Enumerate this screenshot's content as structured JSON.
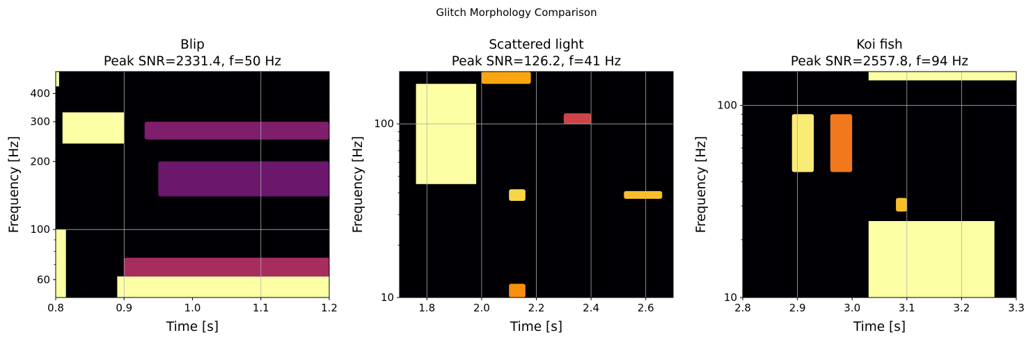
{
  "figure": {
    "suptitle": "Glitch Morphology Comparison"
  },
  "colormap": {
    "name": "inferno",
    "stops": [
      "#000004",
      "#1b0c41",
      "#4a0c6b",
      "#781c6d",
      "#a52c60",
      "#cf4446",
      "#ed6925",
      "#fb9b06",
      "#f7d13d",
      "#fcffa4"
    ]
  },
  "chart_data": [
    {
      "type": "heatmap",
      "title": "Blip\nPeak SNR=2331.4, f=50 Hz",
      "title_lines": [
        "Blip",
        "Peak SNR=2331.4, f=50 Hz"
      ],
      "xlabel": "Time [s]",
      "ylabel": "Frequency [Hz]",
      "xlim": [
        0.8,
        1.2
      ],
      "ylim": [
        50,
        500
      ],
      "yscale": "log",
      "xticks": [
        0.8,
        0.9,
        1.0,
        1.1,
        1.2
      ],
      "xtick_labels": [
        "0.8",
        "0.9",
        "1.0",
        "1.1",
        "1.2"
      ],
      "yticks": [
        60,
        100,
        200,
        300,
        400
      ],
      "ytick_labels": [
        "60",
        "100",
        "200",
        "300",
        "400"
      ],
      "grid_x": [
        0.9,
        1.1
      ],
      "grid_y": [
        100
      ],
      "grid": true,
      "peak": {
        "snr": 2331.4,
        "frequency_hz": 50
      },
      "features": [
        {
          "t0": 0.81,
          "t1": 0.9,
          "f0": 240,
          "f1": 330,
          "level": 1.0
        },
        {
          "t0": 0.89,
          "t1": 1.2,
          "f0": 50,
          "f1": 62,
          "level": 1.0
        },
        {
          "t0": 0.8,
          "t1": 0.815,
          "f0": 50,
          "f1": 100,
          "level": 1.0
        },
        {
          "t0": 0.8,
          "t1": 0.805,
          "f0": 430,
          "f1": 500,
          "level": 1.0
        },
        {
          "t0": 0.93,
          "t1": 1.2,
          "f0": 250,
          "f1": 300,
          "level": 0.35
        },
        {
          "t0": 0.95,
          "t1": 1.2,
          "f0": 140,
          "f1": 200,
          "level": 0.3
        },
        {
          "t0": 0.9,
          "t1": 1.2,
          "f0": 62,
          "f1": 75,
          "level": 0.45
        }
      ]
    },
    {
      "type": "heatmap",
      "title": "Scattered light\nPeak SNR=126.2, f=41 Hz",
      "title_lines": [
        "Scattered light",
        "Peak SNR=126.2, f=41 Hz"
      ],
      "xlabel": "Time [s]",
      "ylabel": "Frequency [Hz]",
      "xlim": [
        1.7,
        2.7
      ],
      "ylim": [
        10,
        200
      ],
      "yscale": "log",
      "xticks": [
        1.8,
        2.0,
        2.2,
        2.4,
        2.6
      ],
      "xtick_labels": [
        "1.8",
        "2.0",
        "2.2",
        "2.4",
        "2.6"
      ],
      "yticks": [
        10,
        100
      ],
      "ytick_labels": [
        "10",
        "100"
      ],
      "grid_x": [
        1.8,
        2.0,
        2.2,
        2.4,
        2.6
      ],
      "grid_y": [
        100
      ],
      "grid": true,
      "peak": {
        "snr": 126.2,
        "frequency_hz": 41
      },
      "features": [
        {
          "t0": 1.76,
          "t1": 1.98,
          "f0": 45,
          "f1": 170,
          "level": 1.0
        },
        {
          "t0": 2.1,
          "t1": 2.16,
          "f0": 36,
          "f1": 42,
          "level": 0.9
        },
        {
          "t0": 2.52,
          "t1": 2.66,
          "f0": 37,
          "f1": 41,
          "level": 0.85
        },
        {
          "t0": 2.3,
          "t1": 2.4,
          "f0": 100,
          "f1": 115,
          "level": 0.55
        },
        {
          "t0": 2.1,
          "t1": 2.16,
          "f0": 10,
          "f1": 12,
          "level": 0.75
        },
        {
          "t0": 2.0,
          "t1": 2.18,
          "f0": 170,
          "f1": 200,
          "level": 0.8
        }
      ]
    },
    {
      "type": "heatmap",
      "title": "Koi fish\nPeak SNR=2557.8, f=94 Hz",
      "title_lines": [
        "Koi fish",
        "Peak SNR=2557.8, f=94 Hz"
      ],
      "xlabel": "Time [s]",
      "ylabel": "Frequency [Hz]",
      "xlim": [
        2.8,
        3.3
      ],
      "ylim": [
        10,
        150
      ],
      "yscale": "log",
      "xticks": [
        2.8,
        2.9,
        3.0,
        3.1,
        3.2,
        3.3
      ],
      "xtick_labels": [
        "2.8",
        "2.9",
        "3.0",
        "3.1",
        "3.2",
        "3.3"
      ],
      "yticks": [
        10,
        100
      ],
      "ytick_labels": [
        "10",
        "100"
      ],
      "grid_x": [
        2.9,
        3.1,
        3.2
      ],
      "grid_y": [
        100
      ],
      "grid": true,
      "peak": {
        "snr": 2557.8,
        "frequency_hz": 94
      },
      "features": [
        {
          "t0": 3.03,
          "t1": 3.26,
          "f0": 10,
          "f1": 25,
          "level": 1.0
        },
        {
          "t0": 2.89,
          "t1": 2.93,
          "f0": 45,
          "f1": 90,
          "level": 0.95
        },
        {
          "t0": 2.96,
          "t1": 3.0,
          "f0": 45,
          "f1": 90,
          "level": 0.7
        },
        {
          "t0": 3.03,
          "t1": 3.3,
          "f0": 135,
          "f1": 150,
          "level": 1.0
        },
        {
          "t0": 3.08,
          "t1": 3.1,
          "f0": 28,
          "f1": 33,
          "level": 0.85
        }
      ]
    }
  ]
}
